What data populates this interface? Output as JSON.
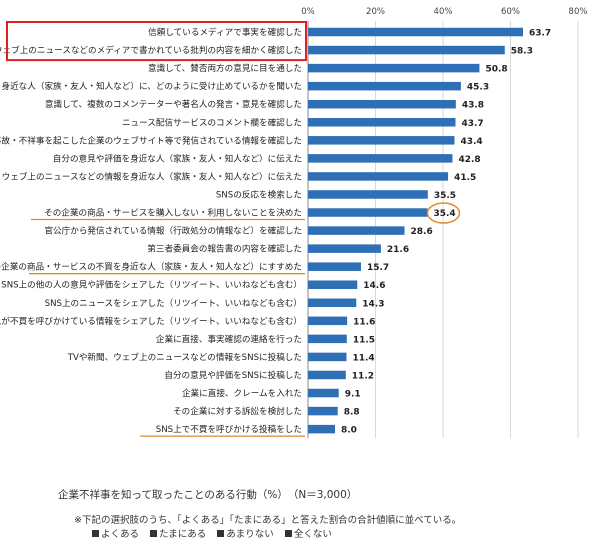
{
  "chart_data": {
    "type": "bar",
    "orientation": "horizontal",
    "xlim": [
      0,
      80
    ],
    "ticks": [
      "0%",
      "20%",
      "40%",
      "60%",
      "80%"
    ],
    "grid": true,
    "bar_color": "#2e6fb5",
    "categories": [
      "信頼しているメディアで事実を確認した",
      "TVや新聞、ウェブ上のニュースなどのメディアで書かれている批判の内容を細かく確認した",
      "意識して、賛否両方の意見に目を通した",
      "身近な人（家族・友人・知人など）に、どのように受け止めているかを聞いた",
      "意識して、複数のコメンテーターや著名人の発言・意見を確認した",
      "ニュース配信サービスのコメント欄を確認した",
      "事件・事故・不祥事を起こした企業のウェブサイト等で発信されている情報を確認した",
      "自分の意見や評価を身近な人（家族・友人・知人など）に伝えた",
      "TVや新聞、ウェブ上のニュースなどの情報を身近な人（家族・友人・知人など）に伝えた",
      "SNSの反応を検索した",
      "その企業の商品・サービスを購入しない・利用しないことを決めた",
      "官公庁から発信されている情報（行政処分の情報など）を確認した",
      "第三者委員会の報告書の内容を確認した",
      "その企業の商品・サービスの不買を身近な人（家族・友人・知人など）にすすめた",
      "SNS上の他の人の意見や評価をシェアした（リツイート、いいねなども含む）",
      "SNS上のニュースをシェアした（リツイート、いいねなども含む）",
      "SNS上で他の人が不買を呼びかけている情報をシェアした（リツイート、いいねなども含む）",
      "企業に直接、事実確認の連絡を行った",
      "TVや新聞、ウェブ上のニュースなどの情報をSNSに投稿した",
      "自分の意見や評価をSNSに投稿した",
      "企業に直接、クレームを入れた",
      "その企業に対する訴訟を検討した",
      "SNS上で不買を呼びかける投稿をした"
    ],
    "values": [
      63.7,
      58.3,
      50.8,
      45.3,
      43.8,
      43.7,
      43.4,
      42.8,
      41.5,
      35.5,
      35.4,
      28.6,
      21.6,
      15.7,
      14.6,
      14.3,
      11.6,
      11.5,
      11.4,
      11.2,
      9.1,
      8.8,
      8.0
    ],
    "highlight_box": [
      0,
      1
    ],
    "underlined": [
      10,
      13,
      22
    ],
    "circled_value": 10,
    "box_color": "#e0201f",
    "underline_color": "#e08a2a"
  },
  "caption": "企業不祥事を知って取ったことのある行動（%）　（N＝3,000）",
  "note": "※下記の選択肢のうち、「よくある」「たまにある」と答えた割合の合計値順に並べている。",
  "legend": [
    "よくある",
    "たまにある",
    "あまりない",
    "全くない"
  ]
}
